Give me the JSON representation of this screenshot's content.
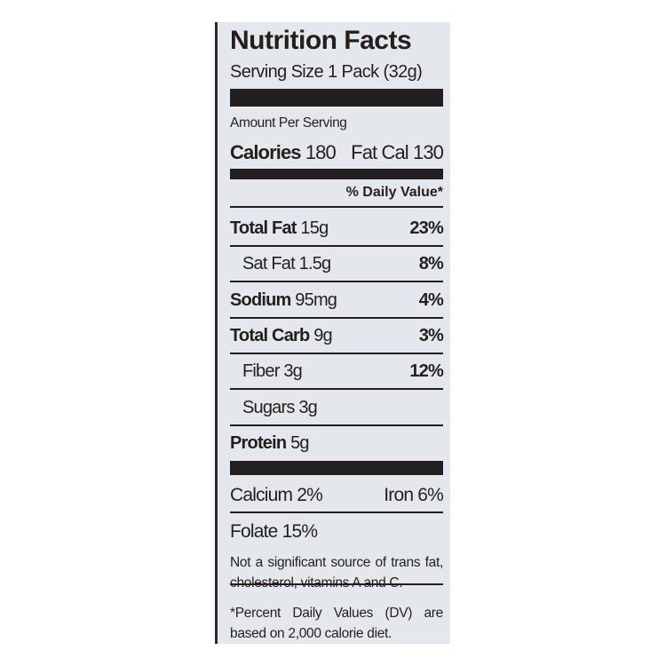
{
  "title": "Nutrition Facts",
  "serving_size": "Serving Size 1 Pack (32g)",
  "amount_per_serving": "Amount Per Serving",
  "calories": {
    "label": "Calories",
    "value": "180"
  },
  "fat_calories": "Fat Cal 130",
  "daily_value_header": "% Daily Value*",
  "nutrients": [
    {
      "name": "Total Fat",
      "amount": "15g",
      "dv": "23%",
      "bold": true,
      "indent": false
    },
    {
      "name": "Sat Fat",
      "amount": "1.5g",
      "dv": "8%",
      "bold": false,
      "indent": true
    },
    {
      "name": "Sodium",
      "amount": "95mg",
      "dv": "4%",
      "bold": true,
      "indent": false
    },
    {
      "name": "Total Carb",
      "amount": "9g",
      "dv": "3%",
      "bold": true,
      "indent": false
    },
    {
      "name": "Fiber",
      "amount": "3g",
      "dv": "12%",
      "bold": false,
      "indent": true
    },
    {
      "name": "Sugars",
      "amount": "3g",
      "bold": false,
      "indent": true
    },
    {
      "name": "Protein",
      "amount": "5g",
      "bold": true,
      "indent": false
    }
  ],
  "vitamins": [
    [
      "Calcium 2%",
      "Iron 6%"
    ],
    [
      "Folate 15%"
    ]
  ],
  "footnotes": [
    "Not a significant source of trans fat, cholesterol, vitamins A and C.",
    "*Percent Daily Values (DV) are based on 2,000 calorie diet."
  ]
}
